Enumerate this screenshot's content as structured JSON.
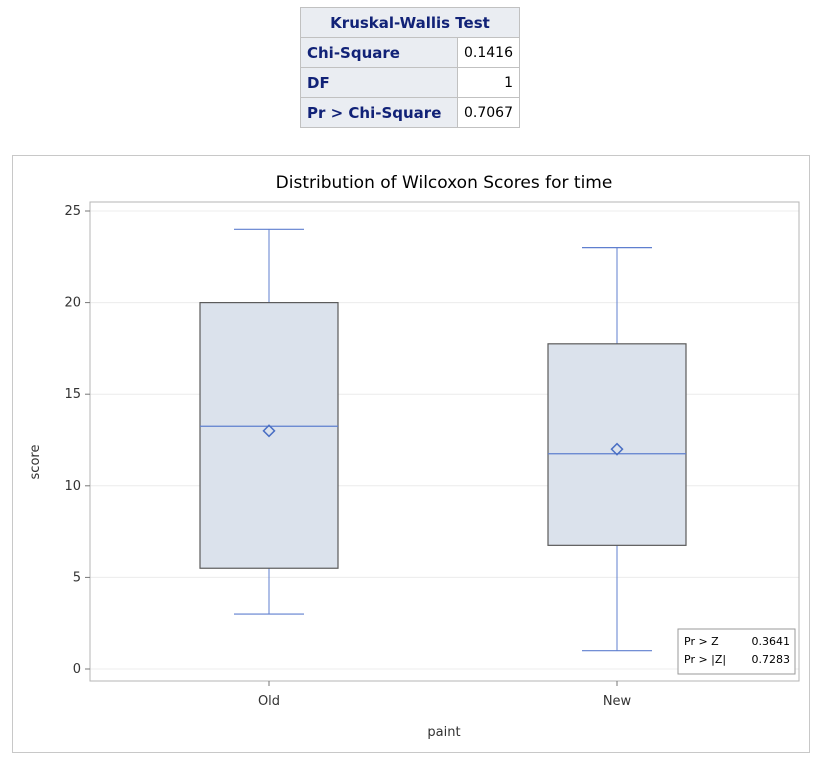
{
  "kw_table": {
    "title": "Kruskal-Wallis Test",
    "rows": [
      {
        "label": "Chi-Square",
        "value": "0.1416"
      },
      {
        "label": "DF",
        "value": "1"
      },
      {
        "label": "Pr > Chi-Square",
        "value": "0.7067"
      }
    ]
  },
  "chart_data": {
    "type": "box",
    "title": "Distribution of Wilcoxon Scores for time",
    "xlabel": "paint",
    "ylabel": "score",
    "ylim": [
      0,
      25
    ],
    "yticks": [
      0,
      5,
      10,
      15,
      20,
      25
    ],
    "grid": true,
    "categories": [
      "Old",
      "New"
    ],
    "boxes": [
      {
        "category": "Old",
        "min": 3,
        "q1": 5.5,
        "median": 13.25,
        "mean": 13,
        "q3": 20,
        "max": 24
      },
      {
        "category": "New",
        "min": 1,
        "q1": 6.75,
        "median": 11.75,
        "mean": 12,
        "q3": 17.75,
        "max": 23
      }
    ],
    "inset": [
      {
        "label": "Pr > Z",
        "value": "0.3641"
      },
      {
        "label": "Pr > |Z|",
        "value": "0.7283"
      }
    ],
    "colors": {
      "box_fill": "#dbe2ec",
      "box_stroke": "#5b5b5b",
      "whisker": "#5f7fcf",
      "mean_marker": "#4a6fc4"
    }
  }
}
